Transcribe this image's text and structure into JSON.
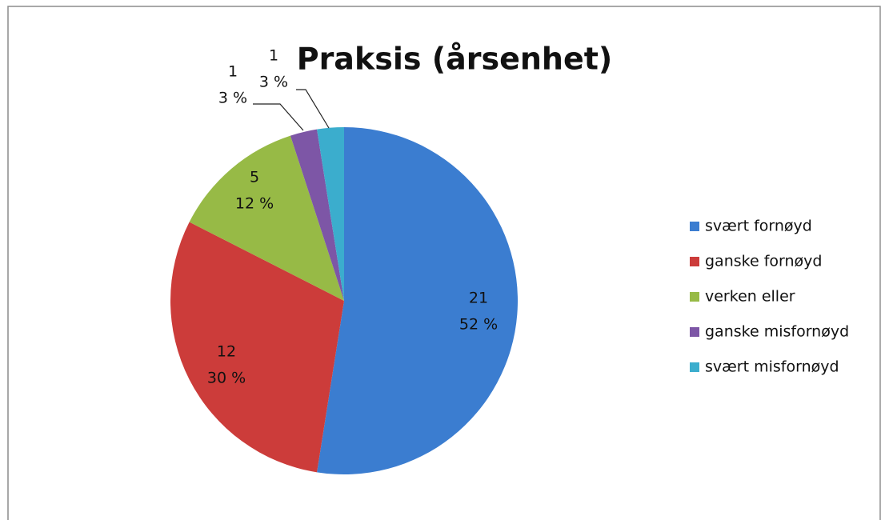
{
  "chart_data": {
    "type": "pie",
    "title": "Praksis (årsenhet)",
    "categories": [
      "svært fornøyd",
      "ganske fornøyd",
      "verken eller",
      "ganske misfornøyd",
      "svært misfornøyd"
    ],
    "values": [
      21,
      12,
      5,
      1,
      1
    ],
    "percentages": [
      52,
      30,
      12,
      3,
      3
    ],
    "percentage_labels": [
      "52 %",
      "30 %",
      "12 %",
      "3 %",
      "3 %"
    ],
    "colors": [
      "#3b7dd0",
      "#cc3c3a",
      "#97ba46",
      "#7d56a6",
      "#3badcd"
    ],
    "legend": "right"
  }
}
